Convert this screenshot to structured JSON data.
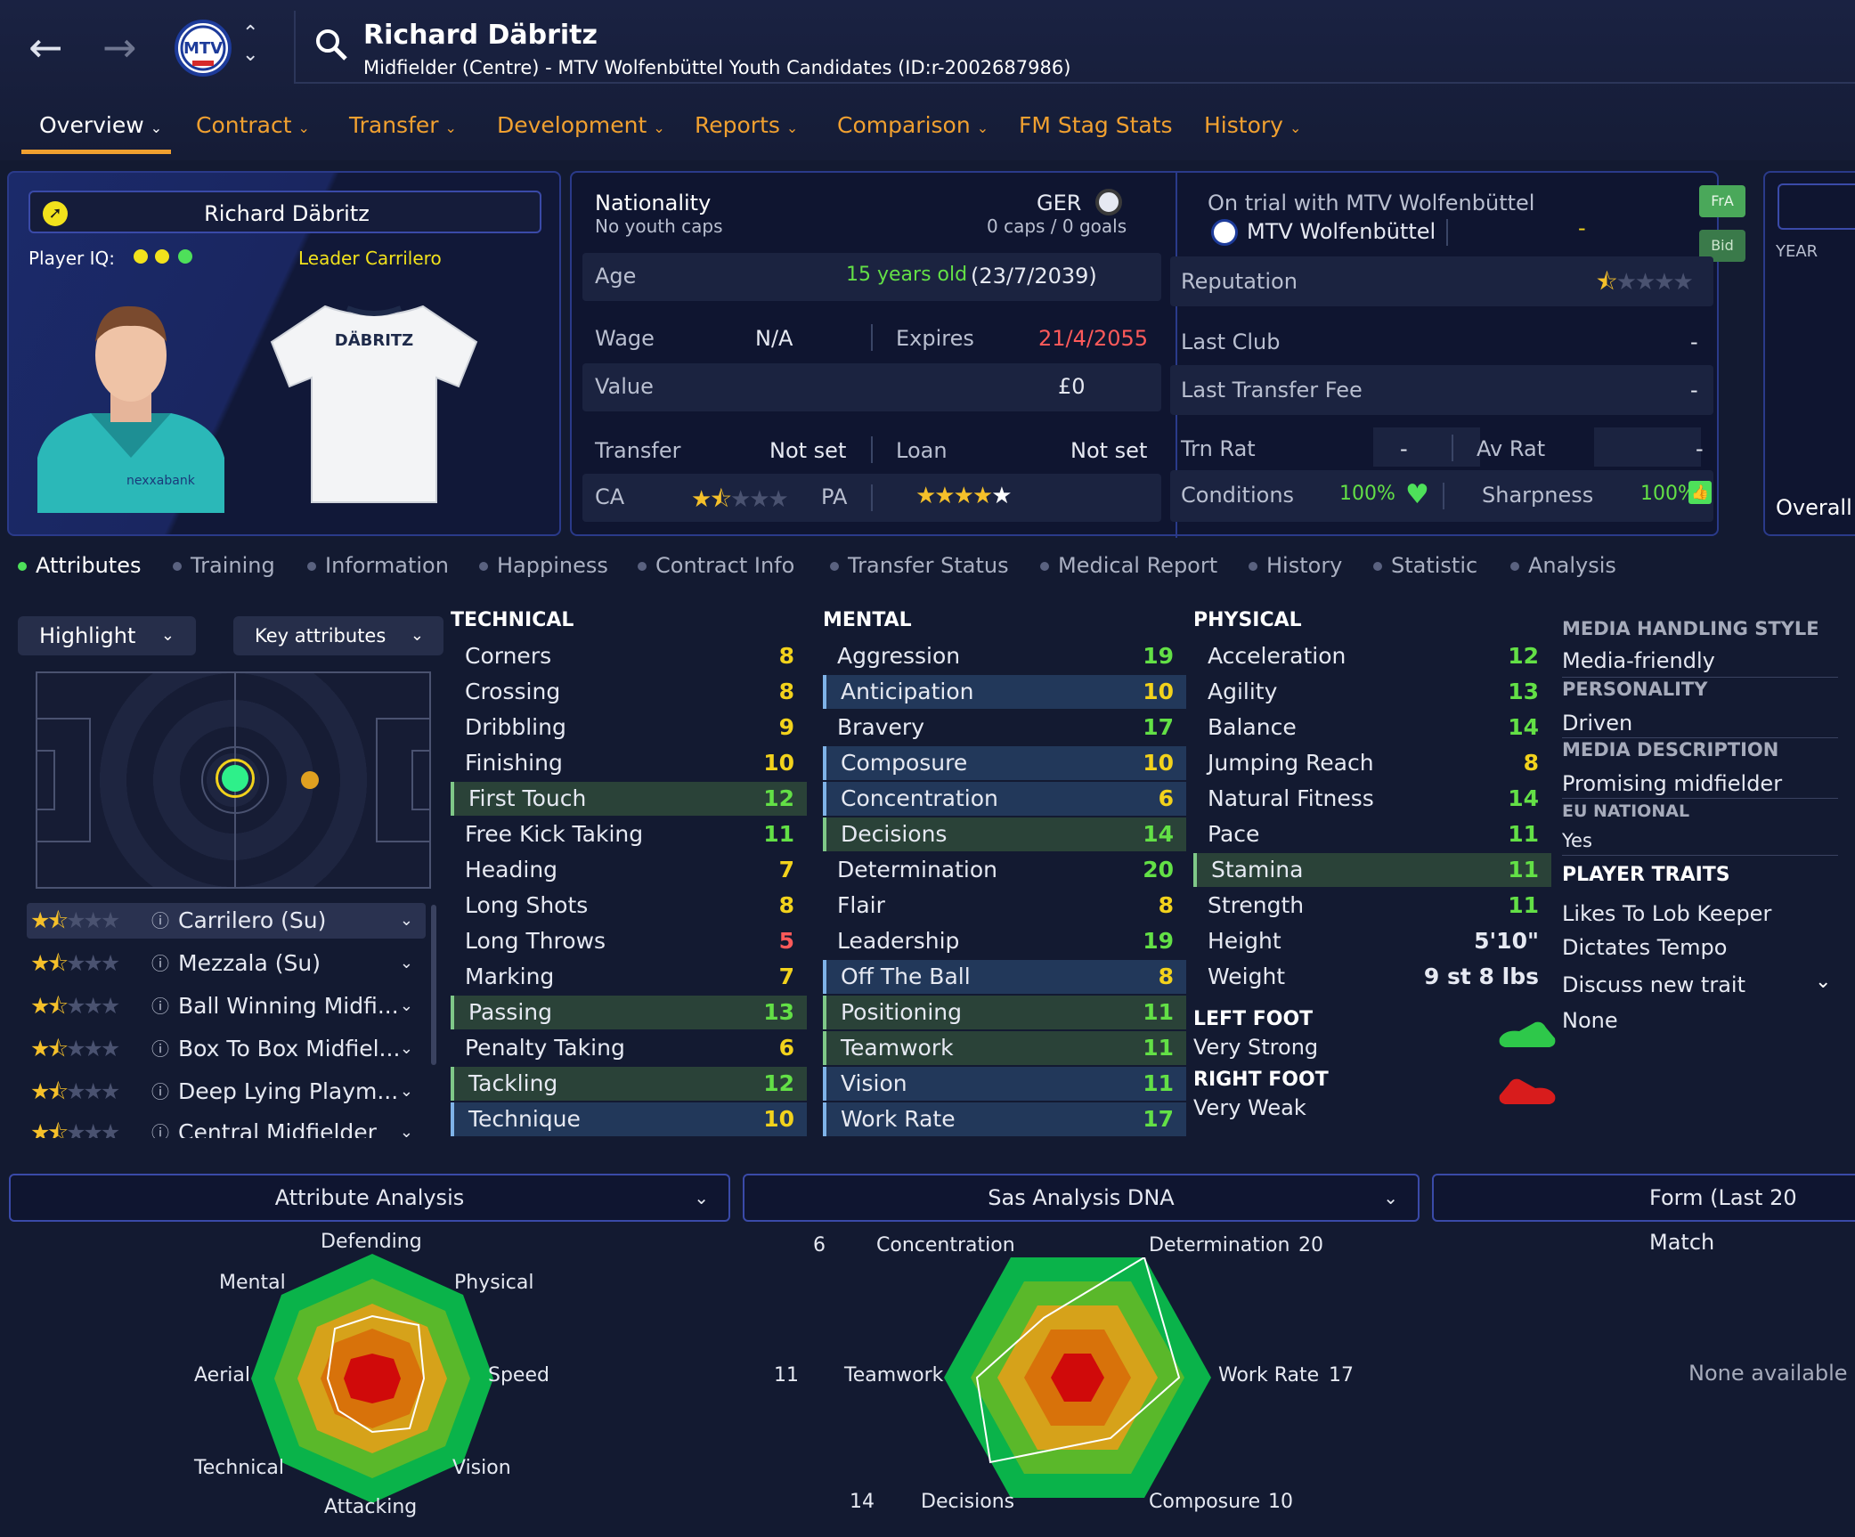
{
  "header": {
    "player_name": "Richard Däbritz",
    "subtitle": "Midfielder (Centre) - MTV Wolfenbüttel Youth Candidates (ID:r-2002687986)",
    "nav": {
      "back": "←",
      "forward": "→"
    }
  },
  "tabs": [
    {
      "label": "Overview",
      "active": true
    },
    {
      "label": "Contract"
    },
    {
      "label": "Transfer"
    },
    {
      "label": "Development"
    },
    {
      "label": "Reports"
    },
    {
      "label": "Comparison"
    },
    {
      "label": "FM Stag Stats"
    },
    {
      "label": "History"
    }
  ],
  "card": {
    "name": "Richard Däbritz",
    "player_iq_label": "Player IQ:",
    "leader_label": "Leader",
    "role_label": "Carrilero",
    "shirt_name": "DÄBRITZ",
    "sponsor": "nexxabank"
  },
  "info": {
    "nationality_label": "Nationality",
    "youth_caps": "No youth caps",
    "nation": "GER",
    "caps_goals": "0 caps / 0 goals",
    "age_label": "Age",
    "age_value": "15 years old",
    "dob": "(23/7/2039)",
    "wage_label": "Wage",
    "wage_value": "N/A",
    "expires_label": "Expires",
    "expires_value": "21/4/2055",
    "value_label": "Value",
    "value_value": "£0",
    "transfer_label": "Transfer",
    "transfer_value": "Not set",
    "loan_label": "Loan",
    "loan_value": "Not set",
    "ca_label": "CA",
    "ca_stars": 1.5,
    "pa_label": "PA",
    "pa_stars": 5
  },
  "club": {
    "trial_text": "On trial with MTV Wolfenbüttel",
    "club_name": "MTV Wolfenbüttel",
    "club_dash": "-",
    "fra_btn": "FrA",
    "bid_btn": "Bid",
    "reputation_label": "Reputation",
    "reputation_stars": 0.5,
    "last_club_label": "Last Club",
    "last_club_value": "-",
    "last_fee_label": "Last Transfer Fee",
    "last_fee_value": "-",
    "trn_rat_label": "Trn Rat",
    "trn_rat_value": "-",
    "av_rat_label": "Av Rat",
    "av_rat_value": "-",
    "conditions_label": "Conditions",
    "conditions_value": "100%",
    "sharpness_label": "Sharpness",
    "sharpness_value": "100%"
  },
  "right_stub": {
    "year_label": "YEAR",
    "overall_label": "Overall"
  },
  "subtabs": [
    "Attributes",
    "Training",
    "Information",
    "Happiness",
    "Contract Info",
    "Transfer Status",
    "Medical Report",
    "History",
    "Statistic",
    "Analysis"
  ],
  "controls": {
    "highlight": "Highlight",
    "key_attributes": "Key attributes"
  },
  "roles": [
    {
      "name": "Carrilero (Su)",
      "stars": 1.5
    },
    {
      "name": "Mezzala (Su)",
      "stars": 1.5
    },
    {
      "name": "Ball Winning Midfi...",
      "stars": 1.5
    },
    {
      "name": "Box To Box Midfiel...",
      "stars": 1.5
    },
    {
      "name": "Deep Lying Playm...",
      "stars": 1.5
    },
    {
      "name": "Central Midfielder",
      "stars": 1.5
    }
  ],
  "technical": {
    "title": "TECHNICAL",
    "items": [
      {
        "name": "Corners",
        "value": "8"
      },
      {
        "name": "Crossing",
        "value": "8"
      },
      {
        "name": "Dribbling",
        "value": "9"
      },
      {
        "name": "Finishing",
        "value": "10"
      },
      {
        "name": "First Touch",
        "value": "12"
      },
      {
        "name": "Free Kick Taking",
        "value": "11"
      },
      {
        "name": "Heading",
        "value": "7"
      },
      {
        "name": "Long Shots",
        "value": "8"
      },
      {
        "name": "Long Throws",
        "value": "5"
      },
      {
        "name": "Marking",
        "value": "7"
      },
      {
        "name": "Passing",
        "value": "13"
      },
      {
        "name": "Penalty Taking",
        "value": "6"
      },
      {
        "name": "Tackling",
        "value": "12"
      },
      {
        "name": "Technique",
        "value": "10"
      }
    ]
  },
  "mental": {
    "title": "MENTAL",
    "items": [
      {
        "name": "Aggression",
        "value": "19"
      },
      {
        "name": "Anticipation",
        "value": "10"
      },
      {
        "name": "Bravery",
        "value": "17"
      },
      {
        "name": "Composure",
        "value": "10"
      },
      {
        "name": "Concentration",
        "value": "6"
      },
      {
        "name": "Decisions",
        "value": "14"
      },
      {
        "name": "Determination",
        "value": "20"
      },
      {
        "name": "Flair",
        "value": "8"
      },
      {
        "name": "Leadership",
        "value": "19"
      },
      {
        "name": "Off The Ball",
        "value": "8"
      },
      {
        "name": "Positioning",
        "value": "11"
      },
      {
        "name": "Teamwork",
        "value": "11"
      },
      {
        "name": "Vision",
        "value": "11"
      },
      {
        "name": "Work Rate",
        "value": "17"
      }
    ]
  },
  "physical": {
    "title": "PHYSICAL",
    "items": [
      {
        "name": "Acceleration",
        "value": "12"
      },
      {
        "name": "Agility",
        "value": "13"
      },
      {
        "name": "Balance",
        "value": "14"
      },
      {
        "name": "Jumping Reach",
        "value": "8"
      },
      {
        "name": "Natural Fitness",
        "value": "14"
      },
      {
        "name": "Pace",
        "value": "11"
      },
      {
        "name": "Stamina",
        "value": "11"
      },
      {
        "name": "Strength",
        "value": "11"
      }
    ],
    "height_label": "Height",
    "height_value": "5'10\"",
    "weight_label": "Weight",
    "weight_value": "9 st 8 lbs",
    "left_foot_label": "LEFT FOOT",
    "left_foot_value": "Very Strong",
    "right_foot_label": "RIGHT FOOT",
    "right_foot_value": "Very Weak"
  },
  "side": {
    "media_style_label": "MEDIA HANDLING STYLE",
    "media_style_value": "Media-friendly",
    "personality_label": "PERSONALITY",
    "personality_value": "Driven",
    "media_desc_label": "MEDIA DESCRIPTION",
    "media_desc_value": "Promising midfielder",
    "eu_label": "EU NATIONAL",
    "eu_value": "Yes",
    "traits_label": "PLAYER TRAITS",
    "traits": [
      "Likes To Lob Keeper",
      "Dictates Tempo"
    ],
    "discuss_label": "Discuss new trait",
    "none_label": "None"
  },
  "bottom": {
    "attr_analysis": {
      "title": "Attribute Analysis",
      "labels": [
        "Defending",
        "Physical",
        "Speed",
        "Vision",
        "Attacking",
        "Technical",
        "Aerial",
        "Mental"
      ]
    },
    "dna": {
      "title": "Sas Analysis DNA",
      "labels": [
        {
          "name": "Determination",
          "value": "20"
        },
        {
          "name": "Work Rate",
          "value": "17"
        },
        {
          "name": "Composure",
          "value": "10"
        },
        {
          "name": "Decisions",
          "value": "14"
        },
        {
          "name": "Teamwork",
          "value": "11"
        },
        {
          "name": "Concentration",
          "value": "6"
        }
      ]
    },
    "form": {
      "title": "Form (Last 20 Match",
      "empty": "None available"
    }
  },
  "colors": {
    "accent": "#f0a030",
    "attr_white": "#ffffff",
    "attr_yellow": "#f2d21c",
    "attr_green": "#63e046",
    "attr_red": "#ff5a5a",
    "panel_border": "#2a3a8a"
  }
}
